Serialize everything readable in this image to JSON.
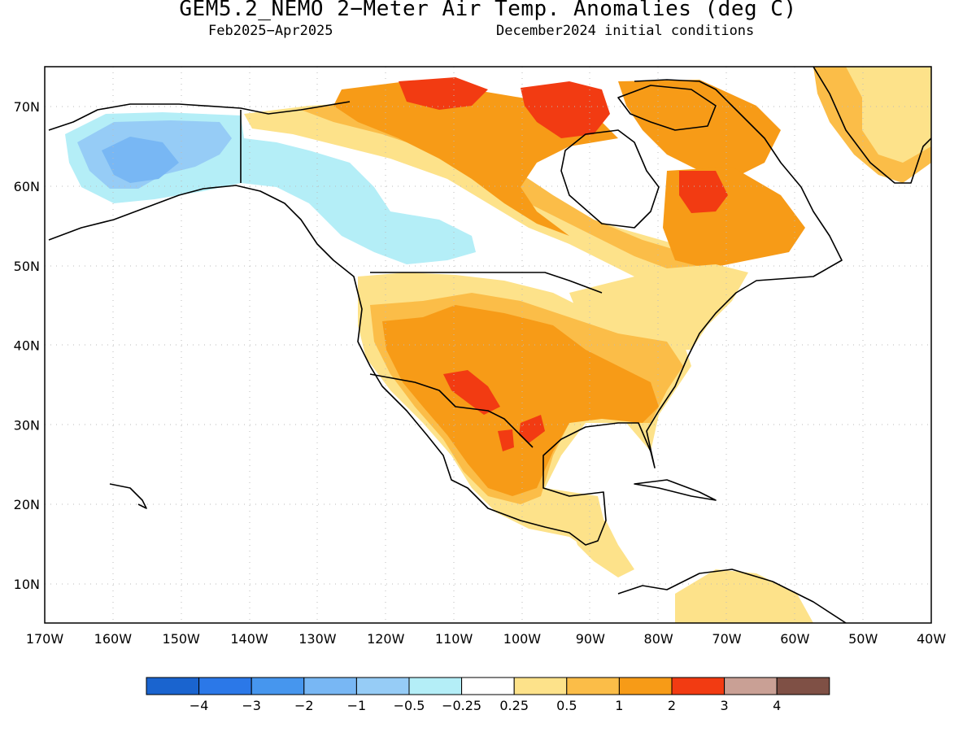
{
  "header": {
    "title": "GEM5.2_NEMO 2−Meter Air Temp. Anomalies (deg C)",
    "period": "Feb2025−Apr2025",
    "initial_conditions": "December2024 initial conditions"
  },
  "axes": {
    "lon_ticks": [
      "170W",
      "160W",
      "150W",
      "140W",
      "130W",
      "120W",
      "110W",
      "100W",
      "90W",
      "80W",
      "70W",
      "60W",
      "50W",
      "40W"
    ],
    "lat_ticks": [
      "10N",
      "20N",
      "30N",
      "40N",
      "50N",
      "60N",
      "70N"
    ]
  },
  "colorbar": {
    "colors": [
      "#1a64cf",
      "#2b78e8",
      "#4696ee",
      "#78b7f4",
      "#96ccf6",
      "#b4eef7",
      "#ffffff",
      "#fde28a",
      "#fbbd48",
      "#f79b17",
      "#f23b12",
      "#c9a095",
      "#7f5045"
    ],
    "labels": [
      "−4",
      "−3",
      "−2",
      "−1",
      "−0.5",
      "−0.25",
      "0.25",
      "0.5",
      "1",
      "2",
      "3",
      "4"
    ]
  },
  "legend_colors": {
    "ocean": "#ffffff",
    "coast": "#000000",
    "grid": "#bbbbbb"
  }
}
